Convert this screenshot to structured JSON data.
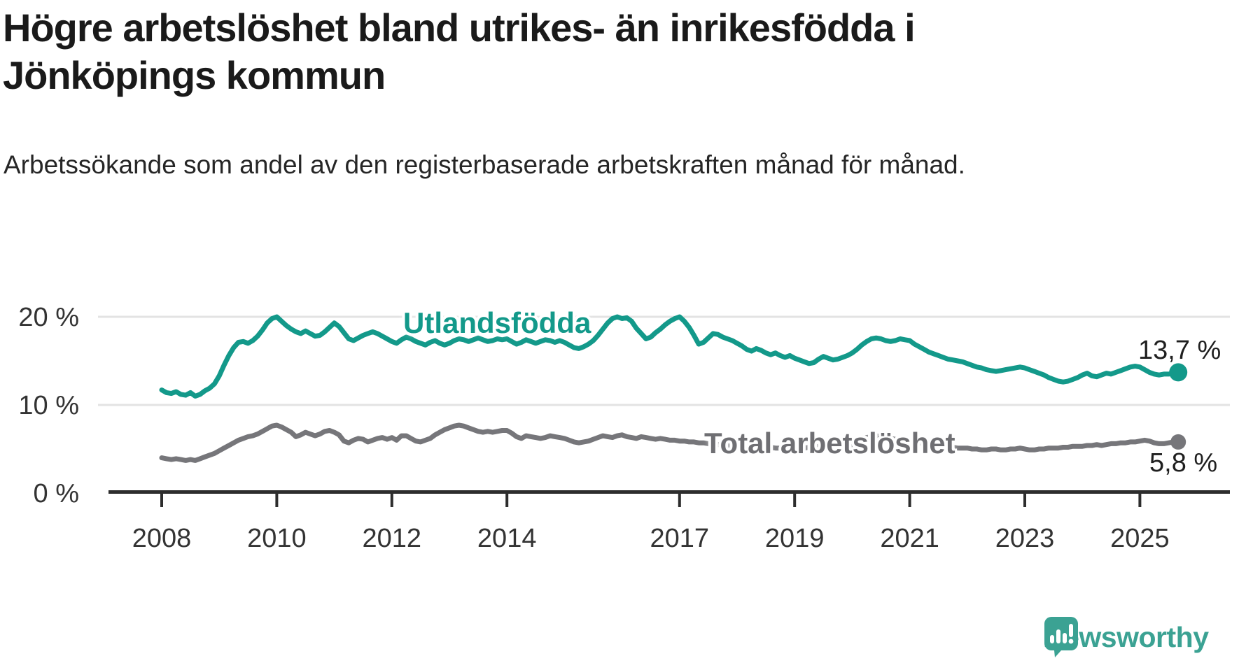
{
  "header": {
    "title_lines": [
      "Högre arbetslöshet bland utrikes- än inrikesfödda i",
      "Jönköpings kommun"
    ],
    "subtitle": "Arbetssökande som andel av den registerbaserade arbetskraften månad för månad."
  },
  "chart_data": {
    "type": "line",
    "unit": "%",
    "x_start": "2008-01",
    "x_end": "2025-09",
    "x_frequency": "monthly",
    "xlim_years": [
      2007.1,
      2026.6
    ],
    "ylim": [
      0,
      22
    ],
    "grid": "horizontal-only",
    "legend_position": "inline-labels",
    "y_ticks": [
      {
        "value": 20,
        "label": "20 %"
      },
      {
        "value": 10,
        "label": "10 %"
      },
      {
        "value": 0,
        "label": "0 %"
      }
    ],
    "x_tick_years": [
      2008,
      2010,
      2012,
      2014,
      2017,
      2019,
      2021,
      2023,
      2025
    ],
    "colors": {
      "grid": "#e3e3e3",
      "axis": "#2d2d2d",
      "tick_text": "#333333"
    },
    "series": [
      {
        "name": "Utlandsfödda",
        "color": "#13998a",
        "end_label": "13,7 %",
        "end_value": 13.7,
        "values": [
          11.7,
          11.4,
          11.3,
          11.5,
          11.2,
          11.1,
          11.4,
          11.0,
          11.2,
          11.6,
          11.9,
          12.4,
          13.3,
          14.5,
          15.6,
          16.5,
          17.1,
          17.2,
          17.0,
          17.3,
          17.8,
          18.5,
          19.3,
          19.8,
          20.0,
          19.5,
          19.0,
          18.6,
          18.3,
          18.1,
          18.4,
          18.1,
          17.8,
          17.9,
          18.3,
          18.8,
          19.3,
          18.9,
          18.2,
          17.5,
          17.3,
          17.6,
          17.9,
          18.1,
          18.3,
          18.1,
          17.8,
          17.5,
          17.2,
          17.0,
          17.4,
          17.7,
          17.5,
          17.2,
          17.0,
          16.8,
          17.1,
          17.3,
          17.0,
          16.8,
          17.0,
          17.3,
          17.5,
          17.4,
          17.2,
          17.4,
          17.6,
          17.4,
          17.2,
          17.3,
          17.5,
          17.4,
          17.5,
          17.2,
          16.9,
          17.1,
          17.4,
          17.2,
          17.0,
          17.2,
          17.4,
          17.3,
          17.1,
          17.3,
          17.1,
          16.8,
          16.5,
          16.4,
          16.6,
          16.9,
          17.3,
          17.9,
          18.6,
          19.3,
          19.8,
          20.0,
          19.8,
          19.9,
          19.5,
          18.7,
          18.1,
          17.5,
          17.7,
          18.2,
          18.6,
          19.1,
          19.5,
          19.8,
          20.0,
          19.5,
          18.8,
          17.9,
          16.9,
          17.1,
          17.6,
          18.1,
          18.0,
          17.7,
          17.5,
          17.3,
          17.0,
          16.7,
          16.3,
          16.1,
          16.4,
          16.2,
          15.9,
          15.7,
          15.9,
          15.6,
          15.4,
          15.6,
          15.3,
          15.1,
          14.9,
          14.7,
          14.8,
          15.2,
          15.5,
          15.3,
          15.1,
          15.2,
          15.4,
          15.6,
          15.9,
          16.3,
          16.8,
          17.2,
          17.5,
          17.6,
          17.5,
          17.3,
          17.2,
          17.3,
          17.5,
          17.4,
          17.3,
          16.9,
          16.6,
          16.3,
          16.0,
          15.8,
          15.6,
          15.4,
          15.2,
          15.1,
          15.0,
          14.9,
          14.7,
          14.5,
          14.3,
          14.2,
          14.0,
          13.9,
          13.8,
          13.9,
          14.0,
          14.1,
          14.2,
          14.3,
          14.2,
          14.0,
          13.8,
          13.6,
          13.4,
          13.1,
          12.9,
          12.7,
          12.6,
          12.7,
          12.9,
          13.1,
          13.4,
          13.6,
          13.3,
          13.2,
          13.4,
          13.6,
          13.5,
          13.7,
          13.9,
          14.1,
          14.3,
          14.4,
          14.3,
          14.0,
          13.7,
          13.5,
          13.4,
          13.5,
          13.5,
          13.6,
          13.7
        ]
      },
      {
        "name": "Total arbetslöshet",
        "color": "#76767a",
        "end_label": "5,8 %",
        "end_value": 5.8,
        "values": [
          4.0,
          3.9,
          3.8,
          3.9,
          3.8,
          3.7,
          3.8,
          3.7,
          3.9,
          4.1,
          4.3,
          4.5,
          4.8,
          5.1,
          5.4,
          5.7,
          6.0,
          6.2,
          6.4,
          6.5,
          6.7,
          7.0,
          7.3,
          7.6,
          7.7,
          7.5,
          7.2,
          6.9,
          6.4,
          6.6,
          6.9,
          6.7,
          6.5,
          6.7,
          7.0,
          7.1,
          6.9,
          6.6,
          5.9,
          5.7,
          6.0,
          6.2,
          6.1,
          5.8,
          6.0,
          6.2,
          6.3,
          6.1,
          6.3,
          6.0,
          6.5,
          6.5,
          6.2,
          5.9,
          5.8,
          6.0,
          6.2,
          6.6,
          6.9,
          7.2,
          7.4,
          7.6,
          7.7,
          7.6,
          7.4,
          7.2,
          7.0,
          6.9,
          7.0,
          6.9,
          7.0,
          7.1,
          7.1,
          6.8,
          6.4,
          6.2,
          6.5,
          6.4,
          6.3,
          6.2,
          6.3,
          6.5,
          6.4,
          6.3,
          6.2,
          6.0,
          5.8,
          5.7,
          5.8,
          5.9,
          6.1,
          6.3,
          6.5,
          6.4,
          6.3,
          6.5,
          6.6,
          6.4,
          6.3,
          6.2,
          6.4,
          6.3,
          6.2,
          6.1,
          6.2,
          6.1,
          6.0,
          6.0,
          5.9,
          5.9,
          5.8,
          5.8,
          5.7,
          5.7,
          5.6,
          5.6,
          5.5,
          5.5,
          5.4,
          5.4,
          5.4,
          5.3,
          5.3,
          5.2,
          5.2,
          5.3,
          5.2,
          5.2,
          5.1,
          5.1,
          5.2,
          5.2,
          5.2,
          5.1,
          5.1,
          5.2,
          5.2,
          5.3,
          5.3,
          5.4,
          5.4,
          5.3,
          5.3,
          5.4,
          5.5,
          5.7,
          6.0,
          6.3,
          6.4,
          6.5,
          6.4,
          6.3,
          6.2,
          6.1,
          6.0,
          6.0,
          5.9,
          5.8,
          5.7,
          5.6,
          5.5,
          5.4,
          5.3,
          5.3,
          5.2,
          5.2,
          5.1,
          5.1,
          5.1,
          5.0,
          5.0,
          4.9,
          4.9,
          5.0,
          5.0,
          4.9,
          4.9,
          5.0,
          5.0,
          5.1,
          5.0,
          4.9,
          4.9,
          5.0,
          5.0,
          5.1,
          5.1,
          5.1,
          5.2,
          5.2,
          5.3,
          5.3,
          5.3,
          5.4,
          5.4,
          5.5,
          5.4,
          5.5,
          5.6,
          5.6,
          5.7,
          5.7,
          5.8,
          5.8,
          5.9,
          6.0,
          5.9,
          5.7,
          5.6,
          5.6,
          5.7,
          5.8,
          5.8
        ]
      }
    ]
  },
  "footer": {
    "brand": "Newsworthy",
    "brand_color": "#3ba293"
  }
}
